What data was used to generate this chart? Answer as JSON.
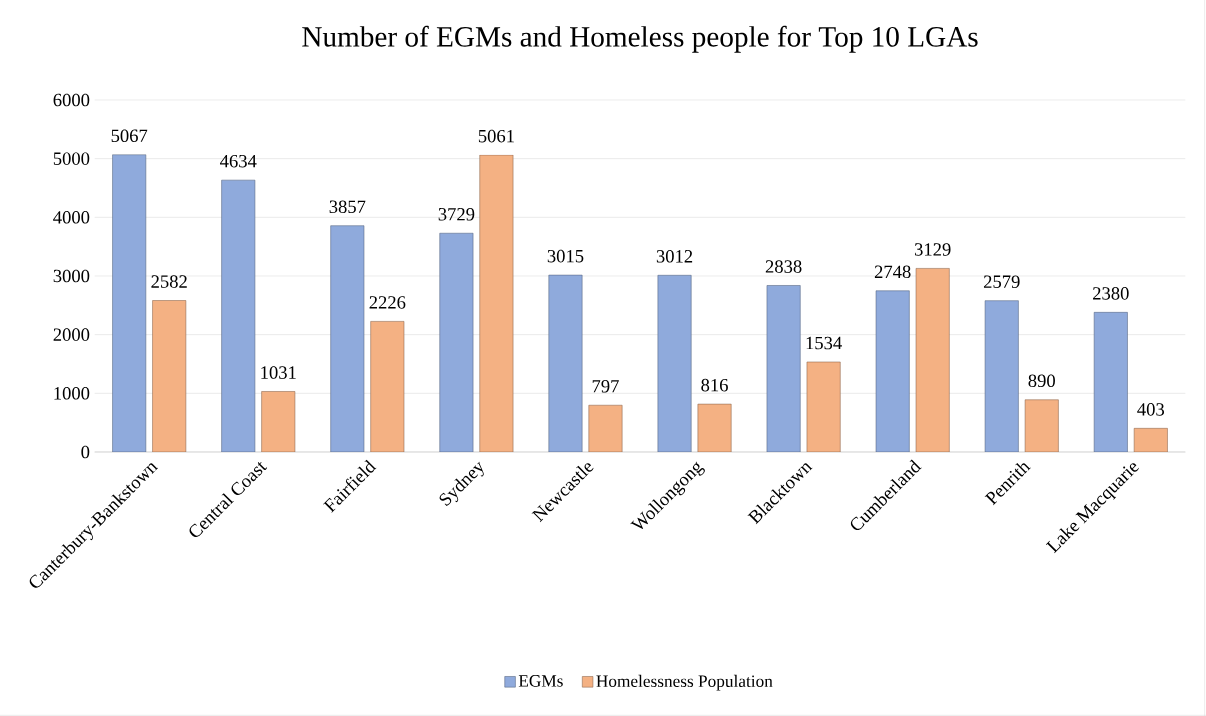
{
  "chart_data": {
    "type": "bar",
    "title": "Number of EGMs and Homeless people for Top 10 LGAs",
    "categories": [
      "Canterbury-Bankstown",
      "Central Coast",
      "Fairfield",
      "Sydney",
      "Newcastle",
      "Wollongong",
      "Blacktown",
      "Cumberland",
      "Penrith",
      "Lake Macquarie"
    ],
    "series": [
      {
        "name": "EGMs",
        "color": "#8faadc",
        "values": [
          5067,
          4634,
          3857,
          3729,
          3015,
          3012,
          2838,
          2748,
          2579,
          2380
        ]
      },
      {
        "name": "Homelessness Population",
        "color": "#f4b183",
        "values": [
          2582,
          1031,
          2226,
          5061,
          797,
          816,
          1534,
          3129,
          890,
          403
        ]
      }
    ],
    "ylim": [
      0,
      6000
    ],
    "yticks": [
      0,
      1000,
      2000,
      3000,
      4000,
      5000,
      6000
    ],
    "grid": "y",
    "legend": "bottom",
    "data_labels": true
  }
}
